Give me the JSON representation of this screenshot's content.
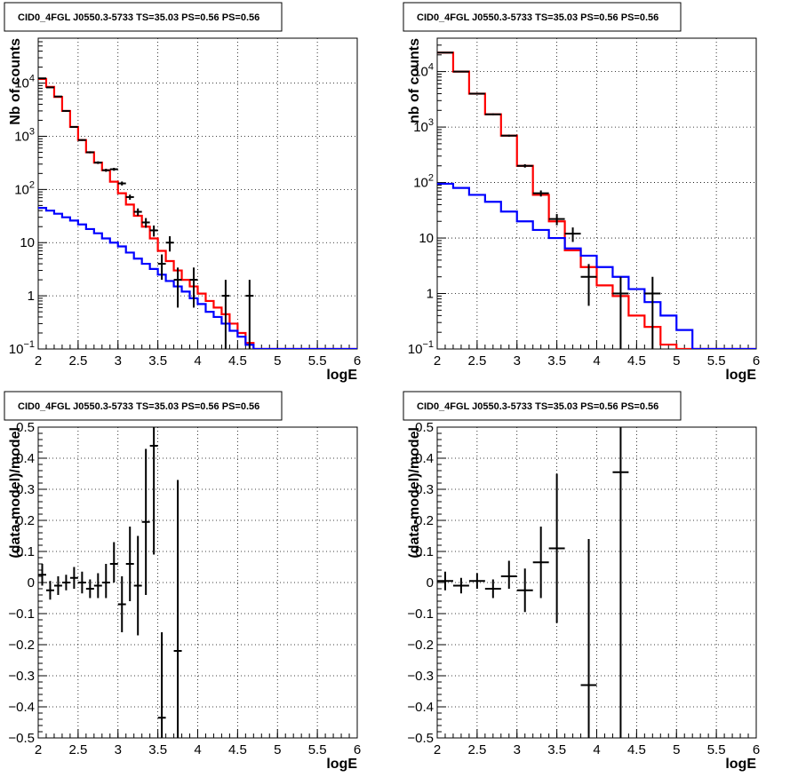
{
  "chart_data": [
    {
      "type": "histogram",
      "title": "CID0_4FGL J0550.3-5733 TS=35.03 PS=0.56 PS=0.56",
      "xlabel": "logE",
      "ylabel": "Nb of counts",
      "xlim": [
        2,
        6
      ],
      "ylim": [
        0.1,
        70000
      ],
      "yscale": "log",
      "grid": true,
      "xticks": [
        "2",
        "2.5",
        "3",
        "3.5",
        "4",
        "4.5",
        "5",
        "5.5",
        "6"
      ],
      "yticks": [
        {
          "v": 0.1,
          "base": "10",
          "exp": "−1"
        },
        {
          "v": 1,
          "label": "1"
        },
        {
          "v": 10,
          "label": "10"
        },
        {
          "v": 100,
          "base": "10",
          "exp": "2"
        },
        {
          "v": 1000,
          "base": "10",
          "exp": "3"
        },
        {
          "v": 10000,
          "base": "10",
          "exp": "4"
        }
      ],
      "series": [
        {
          "color": "#ff0000",
          "style": "step",
          "bin_width": 0.1,
          "x": [
            2.0,
            2.1,
            2.2,
            2.3,
            2.4,
            2.5,
            2.6,
            2.7,
            2.8,
            2.9,
            3.0,
            3.1,
            3.2,
            3.3,
            3.4,
            3.5,
            3.6,
            3.7,
            3.8,
            3.9,
            4.0,
            4.1,
            4.2,
            4.3,
            4.4,
            4.5,
            4.6,
            4.7,
            4.8,
            4.9,
            5.0,
            5.1,
            5.2,
            5.3,
            5.4,
            5.5,
            5.6,
            5.7,
            5.8,
            5.9
          ],
          "y": [
            12000,
            8500,
            5500,
            3000,
            1500,
            850,
            500,
            320,
            230,
            140,
            85,
            52,
            32,
            20,
            12,
            7,
            4.5,
            3,
            2,
            1.5,
            1.1,
            0.8,
            0.6,
            0.45,
            0.3,
            0.2,
            0.13,
            0.1,
            0.1,
            0.1,
            0.1,
            0.1,
            0.1,
            0.1,
            0.1,
            0.1,
            0.1,
            0.1,
            0.1,
            0.1
          ]
        },
        {
          "color": "#0000ff",
          "style": "step",
          "bin_width": 0.1,
          "x": [
            2.0,
            2.1,
            2.2,
            2.3,
            2.4,
            2.5,
            2.6,
            2.7,
            2.8,
            2.9,
            3.0,
            3.1,
            3.2,
            3.3,
            3.4,
            3.5,
            3.6,
            3.7,
            3.8,
            3.9,
            4.0,
            4.1,
            4.2,
            4.3,
            4.4,
            4.5,
            4.6,
            4.7,
            4.8,
            4.9,
            5.0,
            5.1,
            5.2,
            5.3,
            5.4,
            5.5,
            5.6,
            5.7,
            5.8,
            5.9
          ],
          "y": [
            45,
            40,
            35,
            30,
            26,
            22,
            18,
            15,
            12,
            10,
            8.5,
            6.5,
            5,
            4,
            3.2,
            2.5,
            1.9,
            1.5,
            1.2,
            0.9,
            0.7,
            0.5,
            0.4,
            0.3,
            0.22,
            0.17,
            0.12,
            0.1,
            0.1,
            0.1,
            0.1,
            0.1,
            0.1,
            0.1,
            0.1,
            0.1,
            0.1,
            0.1,
            0.1,
            0.1
          ]
        },
        {
          "color": "#000000",
          "style": "errorbar",
          "xerr": 0.05,
          "points": [
            {
              "x": 2.05,
              "y": 12300,
              "lo": 12080,
              "hi": 12520
            },
            {
              "x": 2.15,
              "y": 8300,
              "lo": 8120,
              "hi": 8480
            },
            {
              "x": 2.25,
              "y": 5600,
              "lo": 5450,
              "hi": 5750
            },
            {
              "x": 2.35,
              "y": 3000,
              "lo": 2890,
              "hi": 3110
            },
            {
              "x": 2.45,
              "y": 1500,
              "lo": 1460,
              "hi": 1540
            },
            {
              "x": 2.55,
              "y": 850,
              "lo": 820,
              "hi": 880
            },
            {
              "x": 2.65,
              "y": 500,
              "lo": 478,
              "hi": 522
            },
            {
              "x": 2.75,
              "y": 320,
              "lo": 302,
              "hi": 338
            },
            {
              "x": 2.85,
              "y": 230,
              "lo": 215,
              "hi": 245
            },
            {
              "x": 2.95,
              "y": 240,
              "lo": 225,
              "hi": 255
            },
            {
              "x": 3.05,
              "y": 130,
              "lo": 119,
              "hi": 141
            },
            {
              "x": 3.15,
              "y": 72,
              "lo": 64,
              "hi": 80
            },
            {
              "x": 3.25,
              "y": 38,
              "lo": 32,
              "hi": 44
            },
            {
              "x": 3.35,
              "y": 24,
              "lo": 19,
              "hi": 29
            },
            {
              "x": 3.45,
              "y": 17,
              "lo": 13,
              "hi": 21
            },
            {
              "x": 3.55,
              "y": 4,
              "lo": 2,
              "hi": 6
            },
            {
              "x": 3.65,
              "y": 10,
              "lo": 6.8,
              "hi": 13.2
            },
            {
              "x": 3.75,
              "y": 2,
              "lo": 0.6,
              "hi": 3.4
            },
            {
              "x": 3.95,
              "y": 2,
              "lo": 0.6,
              "hi": 3.4
            },
            {
              "x": 4.35,
              "y": 1,
              "lo": 0.1,
              "hi": 2
            },
            {
              "x": 4.65,
              "y": 1,
              "lo": 0.1,
              "hi": 2
            }
          ]
        }
      ]
    },
    {
      "type": "histogram",
      "title": "CID0_4FGL J0550.3-5733 TS=35.03 PS=0.56 PS=0.56",
      "xlabel": "logE",
      "ylabel": "nb of counts",
      "xlim": [
        2,
        6
      ],
      "ylim": [
        0.1,
        40000
      ],
      "yscale": "log",
      "grid": true,
      "xticks": [
        "2",
        "2.5",
        "3",
        "3.5",
        "4",
        "4.5",
        "5",
        "5.5",
        "6"
      ],
      "yticks": [
        {
          "v": 0.1,
          "base": "10",
          "exp": "−1"
        },
        {
          "v": 1,
          "label": "1"
        },
        {
          "v": 10,
          "label": "10"
        },
        {
          "v": 100,
          "base": "10",
          "exp": "2"
        },
        {
          "v": 1000,
          "base": "10",
          "exp": "3"
        },
        {
          "v": 10000,
          "base": "10",
          "exp": "4"
        }
      ],
      "series": [
        {
          "color": "#ff0000",
          "style": "step",
          "bin_width": 0.2,
          "x": [
            2.0,
            2.2,
            2.4,
            2.6,
            2.8,
            3.0,
            3.2,
            3.4,
            3.6,
            3.8,
            4.0,
            4.2,
            4.4,
            4.6,
            4.8,
            5.0,
            5.2,
            5.4,
            5.6,
            5.8
          ],
          "y": [
            22000,
            10000,
            4000,
            1700,
            700,
            200,
            60,
            20,
            6,
            3,
            1.4,
            0.9,
            0.4,
            0.25,
            0.12,
            0.1,
            0.1,
            0.1,
            0.1,
            0.1
          ]
        },
        {
          "color": "#0000ff",
          "style": "step",
          "bin_width": 0.2,
          "x": [
            2.0,
            2.2,
            2.4,
            2.6,
            2.8,
            3.0,
            3.2,
            3.4,
            3.6,
            3.8,
            4.0,
            4.2,
            4.4,
            4.6,
            4.8,
            5.0,
            5.2,
            5.4,
            5.6,
            5.8
          ],
          "y": [
            95,
            80,
            60,
            45,
            30,
            20,
            14,
            10,
            6.5,
            4.8,
            3,
            2,
            1.2,
            0.7,
            0.4,
            0.22,
            0.1,
            0.1,
            0.1,
            0.1
          ]
        },
        {
          "color": "#000000",
          "style": "errorbar",
          "xerr": 0.1,
          "points": [
            {
              "x": 2.1,
              "y": 22000,
              "lo": 21700,
              "hi": 22300
            },
            {
              "x": 2.3,
              "y": 10000,
              "lo": 9800,
              "hi": 10200
            },
            {
              "x": 2.5,
              "y": 4000,
              "lo": 3900,
              "hi": 4100
            },
            {
              "x": 2.7,
              "y": 1700,
              "lo": 1640,
              "hi": 1760
            },
            {
              "x": 2.9,
              "y": 700,
              "lo": 670,
              "hi": 730
            },
            {
              "x": 3.1,
              "y": 200,
              "lo": 186,
              "hi": 214
            },
            {
              "x": 3.3,
              "y": 64,
              "lo": 56,
              "hi": 72
            },
            {
              "x": 3.5,
              "y": 22,
              "lo": 17,
              "hi": 27
            },
            {
              "x": 3.7,
              "y": 12,
              "lo": 8.5,
              "hi": 15.5
            },
            {
              "x": 3.9,
              "y": 2,
              "lo": 0.6,
              "hi": 3.4
            },
            {
              "x": 4.3,
              "y": 1,
              "lo": 0.1,
              "hi": 2
            },
            {
              "x": 4.7,
              "y": 1,
              "lo": 0.1,
              "hi": 2
            }
          ]
        }
      ]
    },
    {
      "type": "scatter",
      "title": "CID0_4FGL J0550.3-5733 TS=35.03 PS=0.56 PS=0.56",
      "xlabel": "logE",
      "ylabel": "(data-model)/model",
      "xlim": [
        2,
        6
      ],
      "ylim": [
        -0.5,
        0.5
      ],
      "yscale": "linear",
      "grid": true,
      "xticks": [
        "2",
        "2.5",
        "3",
        "3.5",
        "4",
        "4.5",
        "5",
        "5.5",
        "6"
      ],
      "yticks": [
        "−0.5",
        "−0.4",
        "−0.3",
        "−0.2",
        "−0.1",
        "0",
        "0.1",
        "0.2",
        "0.3",
        "0.4",
        "0.5"
      ],
      "series": [
        {
          "color": "#000000",
          "style": "errorbar",
          "xerr": 0.05,
          "points": [
            {
              "x": 2.05,
              "y": 0.025,
              "lo": -0.01,
              "hi": 0.06
            },
            {
              "x": 2.15,
              "y": -0.025,
              "lo": -0.055,
              "hi": 0.005
            },
            {
              "x": 2.25,
              "y": -0.01,
              "lo": -0.04,
              "hi": 0.02
            },
            {
              "x": 2.35,
              "y": 0.0,
              "lo": -0.025,
              "hi": 0.025
            },
            {
              "x": 2.45,
              "y": 0.015,
              "lo": -0.02,
              "hi": 0.05
            },
            {
              "x": 2.55,
              "y": 0.0,
              "lo": -0.035,
              "hi": 0.035
            },
            {
              "x": 2.65,
              "y": -0.02,
              "lo": -0.05,
              "hi": 0.01
            },
            {
              "x": 2.75,
              "y": -0.01,
              "lo": -0.05,
              "hi": 0.03
            },
            {
              "x": 2.85,
              "y": 0.0,
              "lo": -0.05,
              "hi": 0.06
            },
            {
              "x": 2.95,
              "y": 0.06,
              "lo": 0.0,
              "hi": 0.13
            },
            {
              "x": 3.05,
              "y": -0.07,
              "lo": -0.16,
              "hi": 0.02
            },
            {
              "x": 3.15,
              "y": 0.06,
              "lo": -0.06,
              "hi": 0.18
            },
            {
              "x": 3.25,
              "y": -0.01,
              "lo": -0.17,
              "hi": 0.15
            },
            {
              "x": 3.35,
              "y": 0.195,
              "lo": -0.04,
              "hi": 0.43
            },
            {
              "x": 3.45,
              "y": 0.44,
              "lo": 0.09,
              "hi": 0.5
            },
            {
              "x": 3.55,
              "y": -0.435,
              "lo": -0.5,
              "hi": -0.16
            },
            {
              "x": 3.75,
              "y": -0.22,
              "lo": -0.5,
              "hi": 0.33
            }
          ]
        }
      ]
    },
    {
      "type": "scatter",
      "title": "CID0_4FGL J0550.3-5733 TS=35.03 PS=0.56 PS=0.56",
      "xlabel": "logE",
      "ylabel": "(data-model)/model",
      "xlim": [
        2,
        6
      ],
      "ylim": [
        -0.5,
        0.5
      ],
      "yscale": "linear",
      "grid": true,
      "xticks": [
        "2",
        "2.5",
        "3",
        "3.5",
        "4",
        "4.5",
        "5",
        "5.5",
        "6"
      ],
      "yticks": [
        "−0.5",
        "−0.4",
        "−0.3",
        "−0.2",
        "−0.1",
        "0",
        "0.1",
        "0.2",
        "0.3",
        "0.4",
        "0.5"
      ],
      "series": [
        {
          "color": "#000000",
          "style": "errorbar",
          "xerr": 0.1,
          "points": [
            {
              "x": 2.1,
              "y": 0.005,
              "lo": -0.025,
              "hi": 0.035
            },
            {
              "x": 2.3,
              "y": -0.01,
              "lo": -0.035,
              "hi": 0.015
            },
            {
              "x": 2.5,
              "y": 0.005,
              "lo": -0.02,
              "hi": 0.03
            },
            {
              "x": 2.7,
              "y": -0.02,
              "lo": -0.05,
              "hi": 0.01
            },
            {
              "x": 2.9,
              "y": 0.02,
              "lo": -0.02,
              "hi": 0.07
            },
            {
              "x": 3.1,
              "y": -0.025,
              "lo": -0.095,
              "hi": 0.045
            },
            {
              "x": 3.3,
              "y": 0.065,
              "lo": -0.05,
              "hi": 0.18
            },
            {
              "x": 3.5,
              "y": 0.11,
              "lo": -0.13,
              "hi": 0.35
            },
            {
              "x": 3.9,
              "y": -0.33,
              "lo": -0.5,
              "hi": 0.14
            },
            {
              "x": 4.3,
              "y": 0.355,
              "lo": -0.5,
              "hi": 0.5
            }
          ]
        }
      ]
    }
  ]
}
